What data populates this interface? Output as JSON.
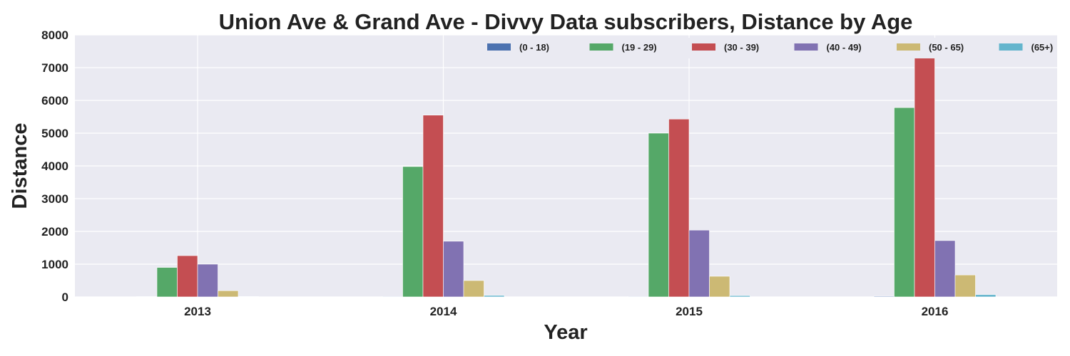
{
  "chart_data": {
    "type": "bar",
    "title": "Union Ave & Grand Ave - Divvy Data subscribers, Distance by Age",
    "xlabel": "Year",
    "ylabel": "Distance",
    "categories": [
      "2013",
      "2014",
      "2015",
      "2016"
    ],
    "ylim": [
      0,
      8000
    ],
    "yticks": [
      0,
      1000,
      2000,
      3000,
      4000,
      5000,
      6000,
      7000,
      8000
    ],
    "grid": true,
    "legend_position": "top-right",
    "series": [
      {
        "name": "(0 - 18)",
        "color": "#4c72b0",
        "values": [
          0,
          15,
          15,
          20
        ]
      },
      {
        "name": "(19 - 29)",
        "color": "#55a868",
        "values": [
          900,
          3980,
          5000,
          5780
        ]
      },
      {
        "name": "(30 - 39)",
        "color": "#c44e52",
        "values": [
          1260,
          5550,
          5430,
          7300
        ]
      },
      {
        "name": "(40 - 49)",
        "color": "#8172b2",
        "values": [
          1000,
          1700,
          2040,
          1720
        ]
      },
      {
        "name": "(50 - 65)",
        "color": "#ccb974",
        "values": [
          190,
          500,
          630,
          670
        ]
      },
      {
        "name": "(65+)",
        "color": "#64b5cd",
        "values": [
          10,
          45,
          40,
          70
        ]
      }
    ]
  }
}
